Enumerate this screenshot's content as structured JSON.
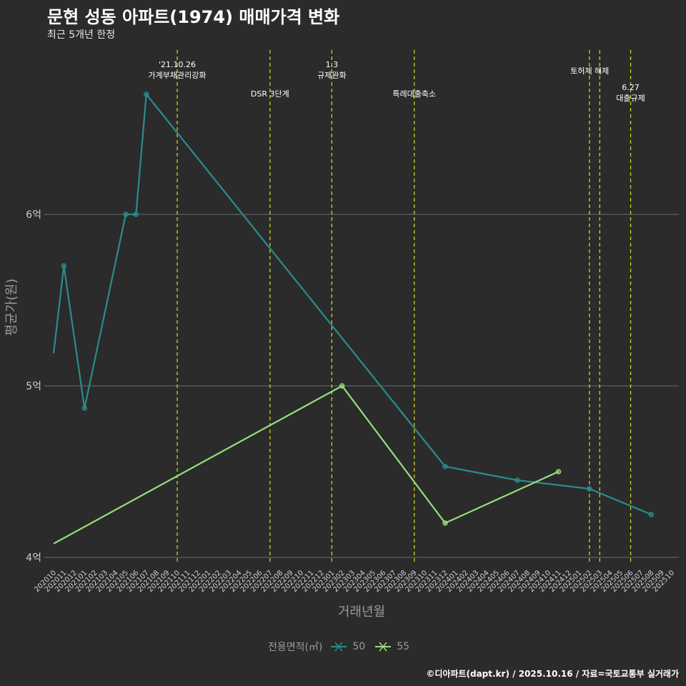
{
  "title": "문현 성동 아파트(1974) 매매가격 변화",
  "subtitle": "최근 5개년 한정",
  "caption": "©디아파트(dapt.kr) / 2025.10.16 / 자료=국토교통부 실거래가",
  "legend": {
    "title": "전용면적(㎡)",
    "items": [
      {
        "label": "50",
        "color": "#2a8d8e"
      },
      {
        "label": "55",
        "color": "#95e07b"
      }
    ]
  },
  "colors": {
    "background": "#2b2b2b",
    "grid": "#6b6b6b",
    "event_line": "#c8d41a",
    "axis_text": "#cfcfcf",
    "axis_title": "#9a9a9a"
  },
  "chart_data": {
    "type": "line",
    "xlabel": "거래년월",
    "ylabel": "평균가(원)",
    "ylim": [
      3.98,
      7.1
    ],
    "y_ticks": [
      {
        "value": 4,
        "label": "4억"
      },
      {
        "value": 5,
        "label": "5억"
      },
      {
        "value": 6,
        "label": "6억"
      }
    ],
    "x_categories": [
      "202010",
      "202011",
      "202012",
      "202101",
      "202102",
      "202103",
      "202104",
      "202105",
      "202106",
      "202107",
      "202108",
      "202109",
      "202110",
      "202111",
      "202112",
      "202201",
      "202202",
      "202203",
      "202204",
      "202205",
      "202206",
      "202207",
      "202208",
      "202209",
      "202210",
      "202211",
      "202212",
      "202301",
      "202302",
      "202303",
      "202304",
      "202305",
      "202306",
      "202307",
      "202308",
      "202309",
      "202310",
      "202311",
      "202312",
      "202401",
      "202402",
      "202403",
      "202404",
      "202405",
      "202406",
      "202407",
      "202408",
      "202409",
      "202410",
      "202411",
      "202412",
      "202501",
      "202502",
      "202503",
      "202504",
      "202505",
      "202506",
      "202507",
      "202508",
      "202509",
      "202510"
    ],
    "series": [
      {
        "name": "50",
        "points": [
          {
            "x": "202010",
            "y": 5.19
          },
          {
            "x": "202011",
            "y": 5.7
          },
          {
            "x": "202101",
            "y": 4.87
          },
          {
            "x": "202105",
            "y": 6.0
          },
          {
            "x": "202106",
            "y": 6.0
          },
          {
            "x": "202107",
            "y": 6.7
          },
          {
            "x": "202312",
            "y": 4.53
          },
          {
            "x": "202407",
            "y": 4.45
          },
          {
            "x": "202502",
            "y": 4.4
          },
          {
            "x": "202508",
            "y": 4.25
          }
        ]
      },
      {
        "name": "55",
        "points": [
          {
            "x": "202010",
            "y": 4.08
          },
          {
            "x": "202302",
            "y": 5.0
          },
          {
            "x": "202312",
            "y": 4.2
          },
          {
            "x": "202411",
            "y": 4.5
          }
        ]
      }
    ],
    "events": [
      {
        "x": "202110",
        "lines": [
          "'21.10.26",
          "가계부채관리강화"
        ],
        "row": 0
      },
      {
        "x": "202207",
        "lines": [
          "DSR 3단계"
        ],
        "row": 2
      },
      {
        "x": "202301",
        "lines": [
          "1.3",
          "규제완화"
        ],
        "row": 0
      },
      {
        "x": "202309",
        "lines": [
          "특례대출축소"
        ],
        "row": 2
      },
      {
        "x": "202502",
        "lines": [],
        "row": 0
      },
      {
        "x": "202503",
        "lines": [
          "토허제 해제"
        ],
        "row": 1
      },
      {
        "x": "202506",
        "lines": [
          "6.27",
          "대출규제"
        ],
        "row": 2
      }
    ]
  }
}
